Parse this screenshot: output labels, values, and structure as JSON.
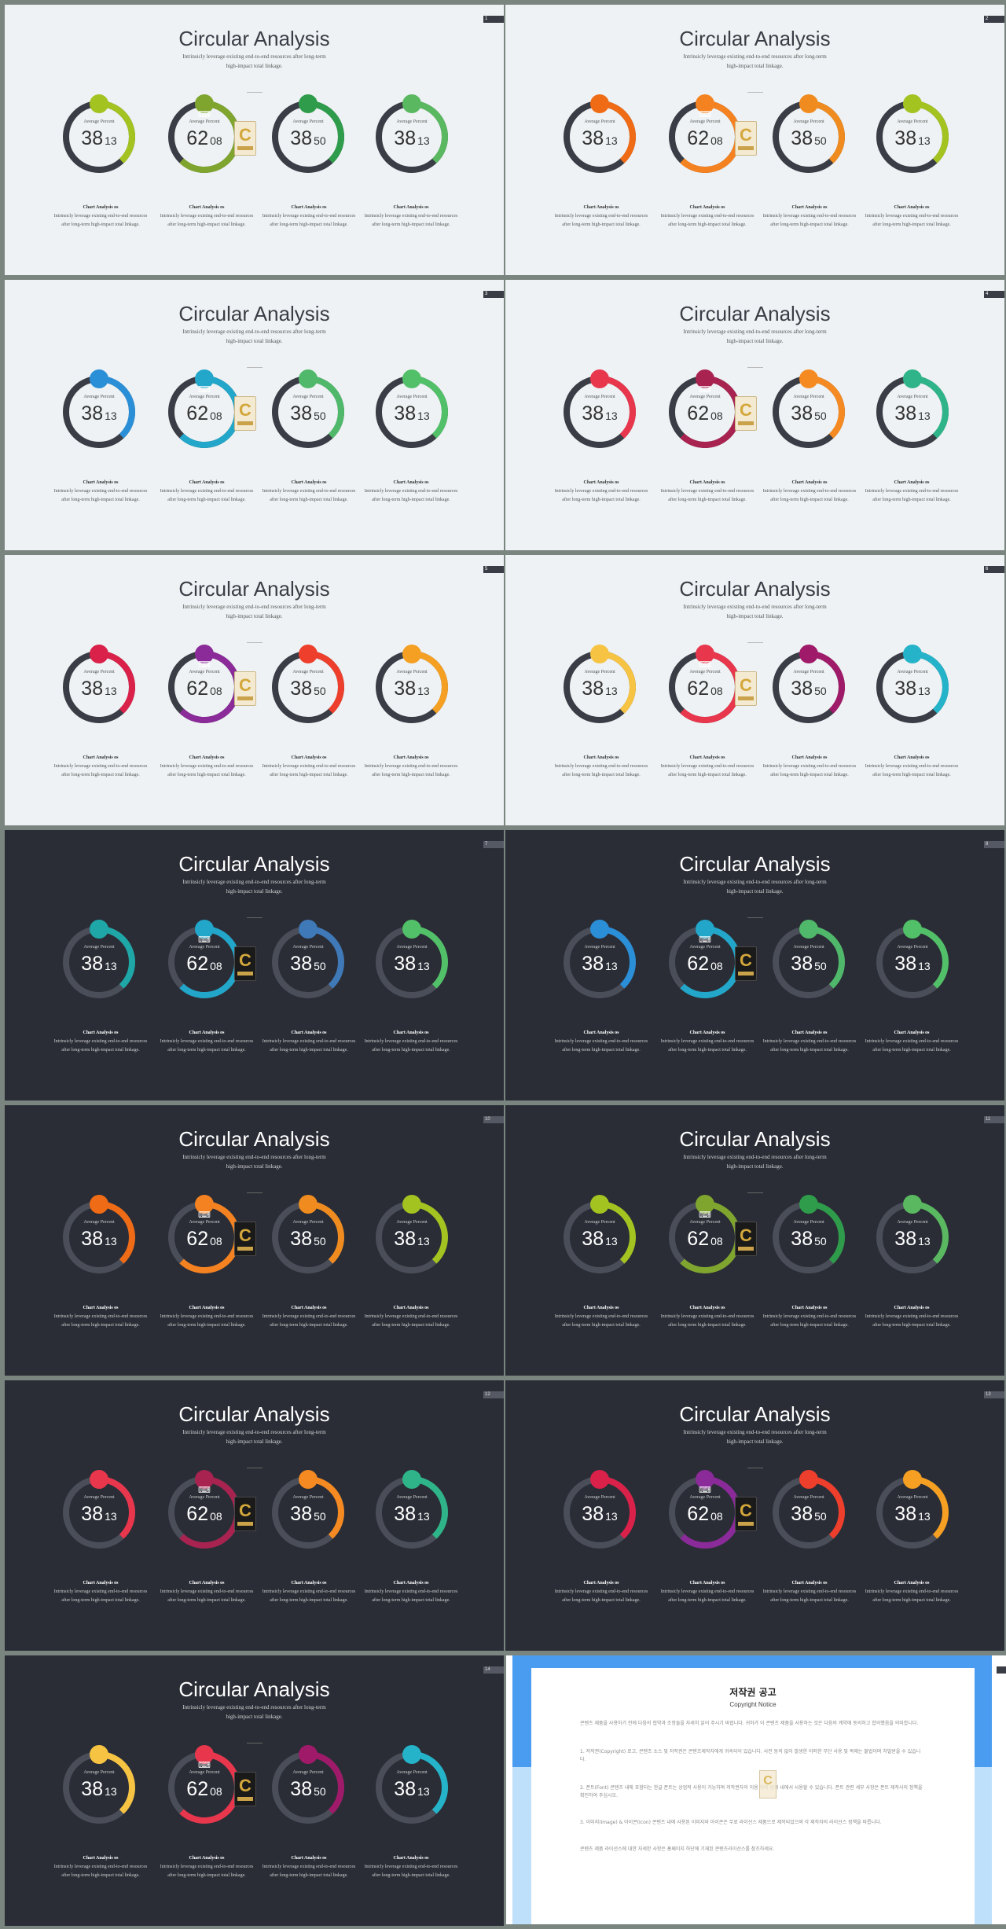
{
  "slide": {
    "title": "Circular Analysis",
    "subtitle_line1": "Intrinsicly leverage existing end-to-end resources after long-term",
    "subtitle_line2": "high-impact total linkage.",
    "chart_label": "Average Percent",
    "caption_title": "Chart Analysis os",
    "caption_line1": "Intrinsicly leverage existing end-to-end resources",
    "caption_line2": "after long-term high-impact total linkage.",
    "center_icon": "keyboard-icon",
    "badge_letter": "C"
  },
  "chart_data": {
    "type": "donut",
    "rings": [
      {
        "big": "38",
        "small": "13"
      },
      {
        "big": "62",
        "small": "08"
      },
      {
        "big": "38",
        "small": "50"
      },
      {
        "big": "38",
        "small": "13"
      }
    ]
  },
  "slides": [
    {
      "theme": "light",
      "page": "1",
      "colors": [
        "#a3c321",
        "#7fa52f",
        "#2e9c4a",
        "#59b860"
      ]
    },
    {
      "theme": "light",
      "page": "2",
      "colors": [
        "#f06b16",
        "#f58220",
        "#f08c1f",
        "#a3c321"
      ]
    },
    {
      "theme": "light",
      "page": "3",
      "colors": [
        "#2b8fd8",
        "#22a6c9",
        "#50b86a",
        "#52c068"
      ]
    },
    {
      "theme": "light",
      "page": "4",
      "colors": [
        "#e8364d",
        "#a82350",
        "#f58a22",
        "#2fb489"
      ]
    },
    {
      "theme": "light",
      "page": "5",
      "colors": [
        "#d9214a",
        "#8b2a99",
        "#ee3e2c",
        "#f5a023"
      ]
    },
    {
      "theme": "light",
      "page": "6",
      "colors": [
        "#f6c343",
        "#e8364d",
        "#a01a6a",
        "#25b3c9"
      ]
    },
    {
      "theme": "dark",
      "page": "7",
      "colors": [
        "#1fa7a8",
        "#22a6c9",
        "#3f79b8",
        "#52c068"
      ]
    },
    {
      "theme": "dark",
      "page": "8",
      "colors": [
        "#2b8fd8",
        "#22a6c9",
        "#50b86a",
        "#52c068"
      ]
    },
    {
      "theme": "dark",
      "page": "10",
      "colors": [
        "#f06b16",
        "#f58220",
        "#f08c1f",
        "#a3c321"
      ]
    },
    {
      "theme": "dark",
      "page": "11",
      "colors": [
        "#a3c321",
        "#7fa52f",
        "#2e9c4a",
        "#59b860"
      ]
    },
    {
      "theme": "dark",
      "page": "12",
      "colors": [
        "#e8364d",
        "#a82350",
        "#f58a22",
        "#2fb489"
      ]
    },
    {
      "theme": "dark",
      "page": "13",
      "colors": [
        "#d9214a",
        "#8b2a99",
        "#ee3e2c",
        "#f5a023"
      ]
    },
    {
      "theme": "dark",
      "page": "14",
      "colors": [
        "#f6c343",
        "#e8364d",
        "#a01a6a",
        "#25b3c9"
      ]
    }
  ],
  "notice": {
    "title": "저작권 공고",
    "subtitle": "Copyright Notice",
    "p1": "콘텐츠 제품을 사용하기 전에 다음의 협약과 조항들을 자세히 읽어 주시기 바랍니다. 귀하가 이 콘텐츠 제품을 사용하는 것은 다음의 계약에 동의하고 합의했음을 의미합니다.",
    "p2": "1. 저작권(Copyright) 로고, 콘텐츠 소스 및 저작권은 콘텐츠제작자에게 귀속되어 있습니다. 사전 동의 없이 발생한 어떠한 무단 사용 및 복제는 불법이며 처벌받을 수 있습니다.",
    "p3": "2. 폰트(Font) 콘텐츠 내에 포함되는 한글 폰트는 상업적 사용이 가능하며 저작권자의 이용 허락 범위 내에서 사용할 수 있습니다. 폰트 관련 세부 사항은 폰트 제작사의 정책을 확인하여 주십시오.",
    "p4": "3. 이미지(Image) & 아이콘(Icon) 콘텐츠 내에 사용된 이미지와 아이콘은 무료 라이선스 제품으로 제작되었으며 각 제작자의 라이선스 정책을 따릅니다.",
    "p5": "콘텐츠 제품 라이선스에 대한 자세한 사항은 홈페이지 하단에 기재된 콘텐츠라이선스를 참조하세요."
  }
}
